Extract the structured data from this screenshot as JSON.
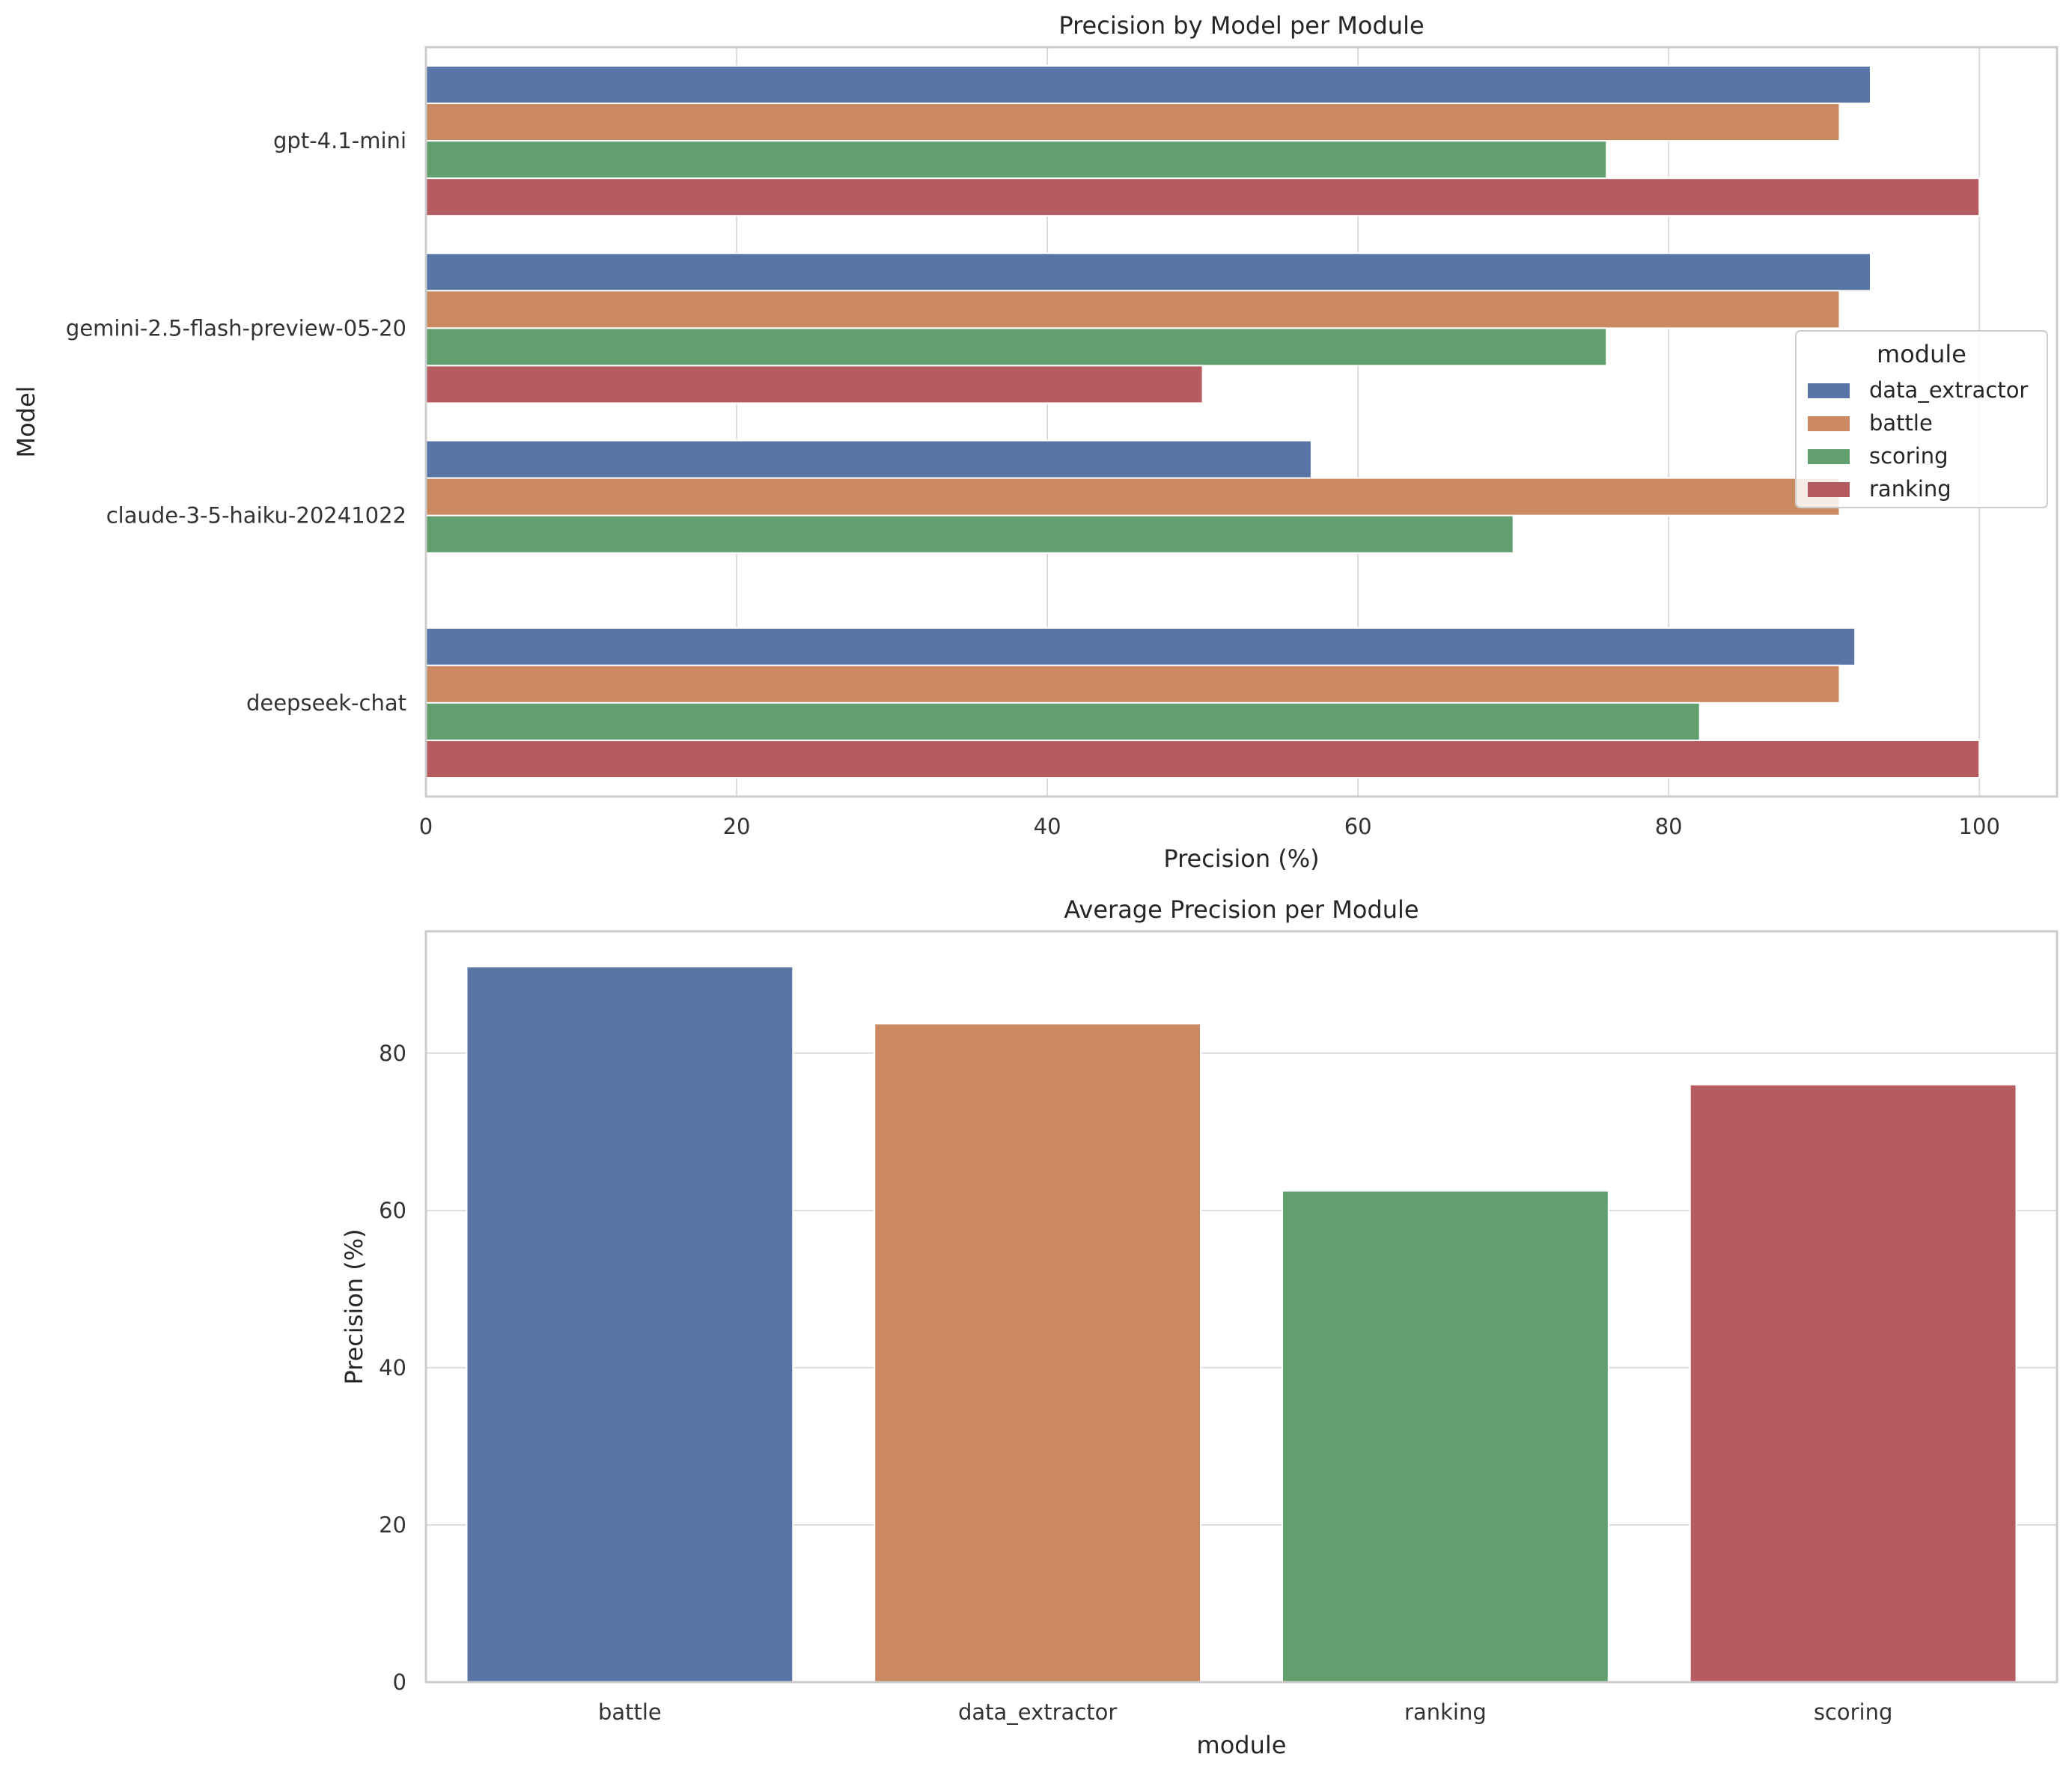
{
  "colors": {
    "data_extractor": "#5875a6",
    "battle": "#cb8961",
    "scoring": "#619f6f",
    "ranking": "#b45c5f",
    "grid": "#dcdcdc",
    "frame": "#cccccc",
    "text": "#262626"
  },
  "chart_data": [
    {
      "type": "bar",
      "orientation": "horizontal",
      "title": "Precision by Model per Module",
      "xlabel": "Precision (%)",
      "ylabel": "Model",
      "xlim": [
        0,
        105
      ],
      "xticks": [
        "0",
        "20",
        "40",
        "60",
        "80",
        "100"
      ],
      "categories": [
        "gpt-4.1-mini",
        "gemini-2.5-flash-preview-05-20",
        "claude-3-5-haiku-20241022",
        "deepseek-chat"
      ],
      "legend_title": "module",
      "legend_position": "right",
      "series": [
        {
          "name": "data_extractor",
          "color_key": "data_extractor",
          "values": [
            93,
            93,
            57,
            92
          ]
        },
        {
          "name": "battle",
          "color_key": "battle",
          "values": [
            91,
            91,
            91,
            91
          ]
        },
        {
          "name": "scoring",
          "color_key": "scoring",
          "values": [
            76,
            76,
            70,
            82
          ]
        },
        {
          "name": "ranking",
          "color_key": "ranking",
          "values": [
            100,
            50,
            null,
            100
          ]
        }
      ],
      "grid": true
    },
    {
      "type": "bar",
      "orientation": "vertical",
      "title": "Average Precision per Module",
      "xlabel": "module",
      "ylabel": "Precision (%)",
      "ylim": [
        0,
        95.5
      ],
      "yticks": [
        "0",
        "20",
        "40",
        "60",
        "80"
      ],
      "categories": [
        "battle",
        "data_extractor",
        "ranking",
        "scoring"
      ],
      "values": [
        91,
        83.75,
        62.5,
        76
      ],
      "bar_color_keys": [
        "data_extractor",
        "battle",
        "scoring",
        "ranking"
      ],
      "grid": true
    }
  ]
}
